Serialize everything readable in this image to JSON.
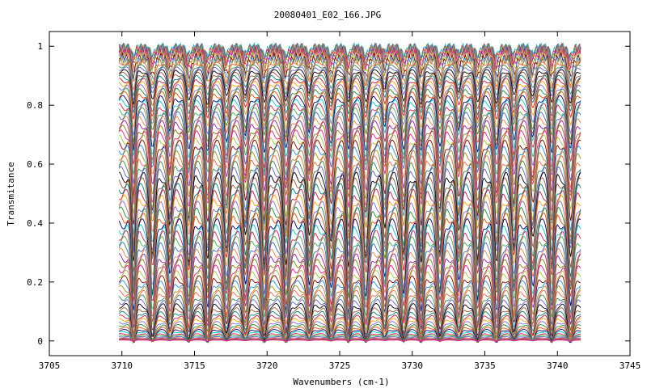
{
  "chart_data": {
    "type": "line",
    "title": "20080401_E02_166.JPG",
    "xlabel": "Wavenumbers (cm-1)",
    "ylabel": "Transmitance",
    "xlim": [
      3705,
      3745
    ],
    "ylim": [
      -0.05,
      1.05
    ],
    "x_ticks": [
      "3705",
      "3710",
      "3715",
      "3720",
      "3725",
      "3730",
      "3735",
      "3740",
      "3745"
    ],
    "y_ticks": [
      "0",
      "0.2",
      "0.4",
      "0.6",
      "0.8",
      "1"
    ],
    "x_range": [
      3709.8,
      3741.6
    ],
    "grid": false,
    "legend": "none",
    "absorption_lines_cm1": [
      3710.8,
      3712.1,
      3713.3,
      3714.6,
      3715.9,
      3717.2,
      3718.5,
      3719.8,
      3721.3,
      3722.9,
      3724.4,
      3725.6,
      3726.8,
      3728.1,
      3729.4,
      3730.6,
      3731.9,
      3733.2,
      3734.5,
      3735.8,
      3737.0,
      3738.3,
      3739.6,
      3740.9
    ],
    "series_count": 80,
    "series_baselines": [
      1.0,
      0.998,
      0.996,
      0.993,
      0.99,
      0.986,
      0.982,
      0.977,
      0.972,
      0.966,
      0.96,
      0.953,
      0.946,
      0.938,
      0.93,
      0.921,
      0.912,
      0.902,
      0.892,
      0.881,
      0.87,
      0.858,
      0.846,
      0.833,
      0.82,
      0.806,
      0.792,
      0.778,
      0.763,
      0.748,
      0.732,
      0.716,
      0.699,
      0.682,
      0.665,
      0.647,
      0.629,
      0.611,
      0.592,
      0.573,
      0.554,
      0.535,
      0.515,
      0.495,
      0.475,
      0.455,
      0.435,
      0.415,
      0.395,
      0.375,
      0.355,
      0.335,
      0.315,
      0.296,
      0.277,
      0.258,
      0.24,
      0.222,
      0.205,
      0.188,
      0.172,
      0.156,
      0.141,
      0.127,
      0.113,
      0.1,
      0.088,
      0.077,
      0.066,
      0.056,
      0.047,
      0.039,
      0.032,
      0.025,
      0.02,
      0.015,
      0.011,
      0.008,
      0.005,
      0.003
    ],
    "colors": [
      "#00c8c8",
      "#e6194b",
      "#3cb44b",
      "#4363d8",
      "#f58231",
      "#911eb4",
      "#808000",
      "#ff1493",
      "#9acd32",
      "#8b0000",
      "#1e90ff",
      "#b8860b",
      "#ff6347",
      "#2e8b57",
      "#6a5acd",
      "#000000",
      "#a0522d",
      "#008080",
      "#dc143c",
      "#ffa500",
      "#7b68ee",
      "#228b22",
      "#ff4500",
      "#000080"
    ]
  }
}
